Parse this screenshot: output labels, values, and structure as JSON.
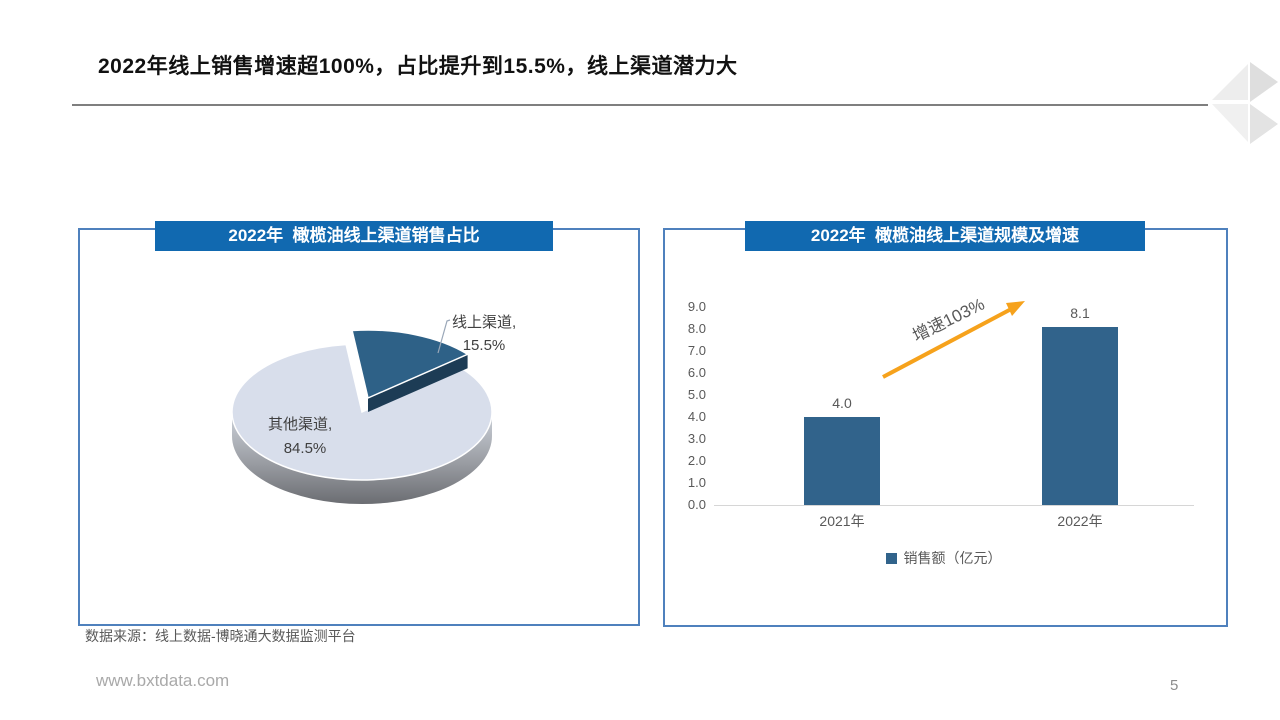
{
  "slide": {
    "title": "2022年线上销售增速超100%，占比提升到15.5%，线上渠道潜力大",
    "source": "数据来源：线上数据-博晓通大数据监测平台",
    "footer_url": "www.bxtdata.com",
    "page_number": "5"
  },
  "colors": {
    "banner_blue": "#1169B0",
    "box_border": "#4F81BD",
    "pie_online": "#2E6187",
    "pie_other": "#D8DEEB",
    "bar": "#31638B",
    "arrow_orange": "#F6A21C"
  },
  "chart_data": [
    {
      "type": "pie",
      "title": "2022年  橄榄油线上渠道销售占比",
      "labels": [
        "线上渠道",
        "其他渠道"
      ],
      "values": [
        15.5,
        84.5
      ],
      "unit": "%",
      "colors": [
        "#2E6187",
        "#D8DEEB"
      ],
      "style": "3d exploded pie, online-channel slice pulled out top-right",
      "data_labels": [
        [
          "线上渠道,",
          "15.5%"
        ],
        [
          "其他渠道,",
          "84.5%"
        ]
      ]
    },
    {
      "type": "bar",
      "title": "2022年  橄榄油线上渠道规模及增速",
      "categories": [
        "2021年",
        "2022年"
      ],
      "values": [
        4.0,
        8.1
      ],
      "value_labels": [
        "4.0",
        "8.1"
      ],
      "y_ticks": [
        "9.0",
        "8.0",
        "7.0",
        "6.0",
        "5.0",
        "4.0",
        "3.0",
        "2.0",
        "1.0",
        "0.0"
      ],
      "ylim": [
        0,
        9
      ],
      "legend": [
        "销售额（亿元）"
      ],
      "legend_position": "bottom",
      "annotation": "增速103%",
      "bar_color": "#31638B",
      "grid": false
    }
  ]
}
